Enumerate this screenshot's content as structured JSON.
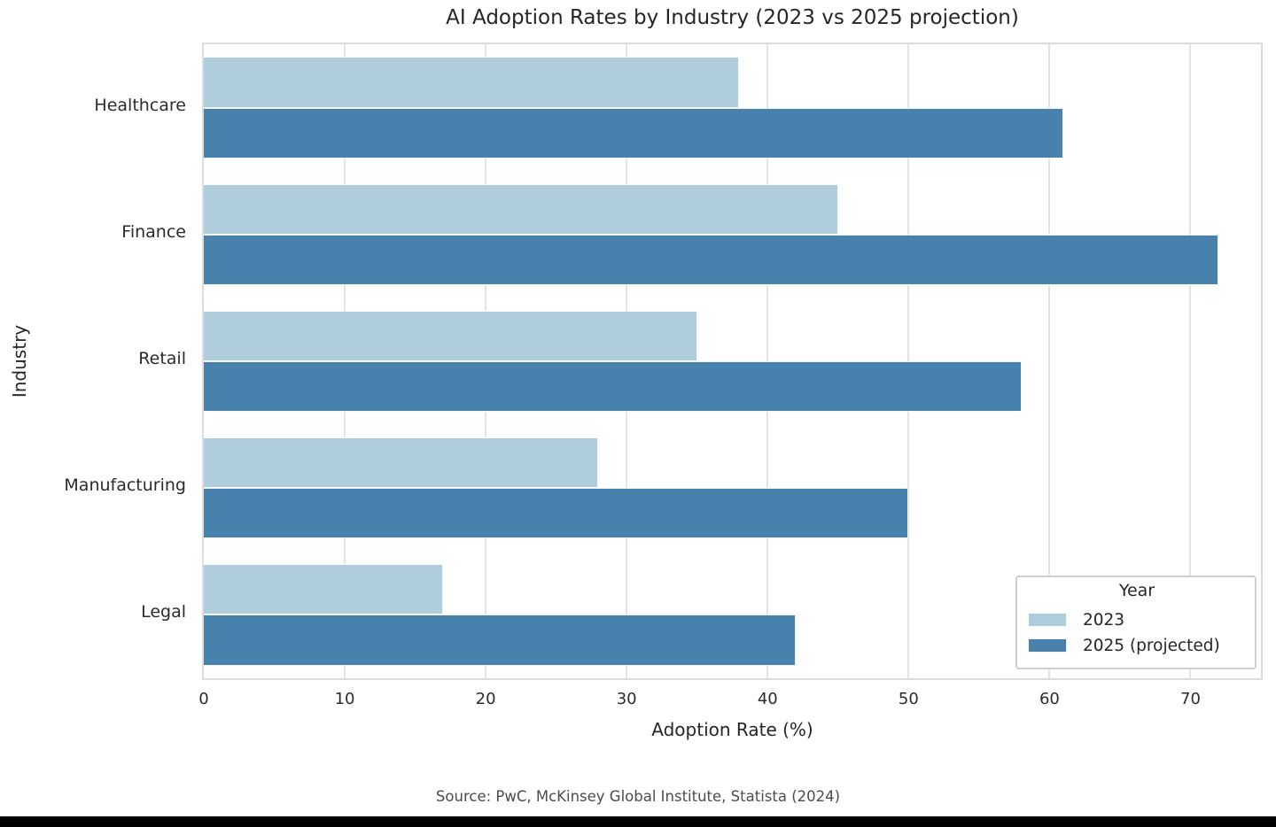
{
  "chart_data": {
    "type": "bar",
    "orientation": "horizontal",
    "title": "AI Adoption Rates by Industry (2023 vs 2025 projection)",
    "xlabel": "Adoption Rate (%)",
    "ylabel": "Industry",
    "categories": [
      "Healthcare",
      "Finance",
      "Retail",
      "Manufacturing",
      "Legal"
    ],
    "series": [
      {
        "name": "2023",
        "color": "#b0cdde",
        "values": [
          38,
          45,
          35,
          28,
          17
        ]
      },
      {
        "name": "2025 (projected)",
        "color": "#4981ad",
        "values": [
          61,
          72,
          58,
          50,
          42
        ]
      }
    ],
    "xlim": [
      0,
      75
    ],
    "xticks": [
      0,
      10,
      20,
      30,
      40,
      50,
      60,
      70
    ],
    "grid": "vertical",
    "legend_title": "Year",
    "legend_position": "lower right",
    "caption": "Source: PwC, McKinsey Global Institute, Statista (2024)"
  },
  "style": {
    "grid_color": "#e4e4e4",
    "spine_color": "#dcdcdc",
    "text_color": "#262626",
    "caption_color": "#4c4c4c",
    "background": "#ffffff",
    "bottom_bar_color": "#000000"
  }
}
